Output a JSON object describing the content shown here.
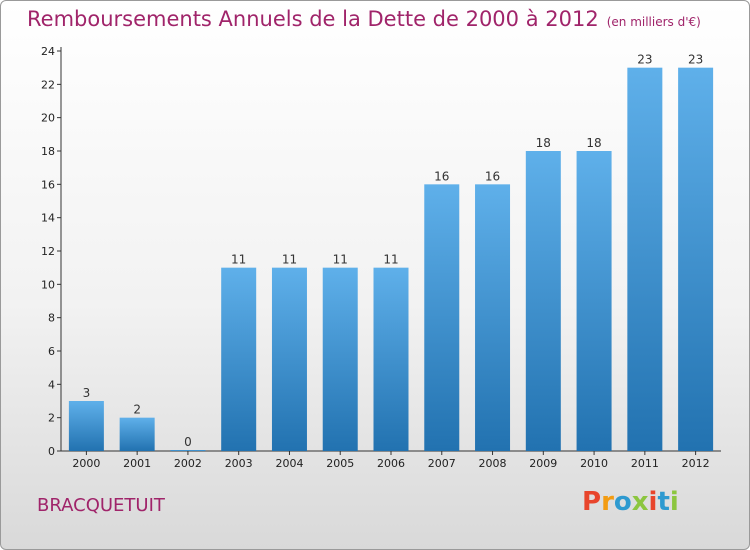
{
  "title": "Remboursements Annuels de la Dette de 2000 à 2012",
  "unit": "(en milliers d'€)",
  "commune": "BRACQUETUIT",
  "logo": {
    "text": "Proxiti",
    "colors": [
      "#e8452c",
      "#f39c12",
      "#2e9ad0",
      "#8cc63f",
      "#e8452c",
      "#2e9ad0",
      "#8cc63f"
    ]
  },
  "colors": {
    "accent": "#a0246a",
    "bar_top": "#5fb0ea",
    "bar_bottom": "#2272b0"
  },
  "chart_data": {
    "type": "bar",
    "categories": [
      "2000",
      "2001",
      "2002",
      "2003",
      "2004",
      "2005",
      "2006",
      "2007",
      "2008",
      "2009",
      "2010",
      "2011",
      "2012"
    ],
    "values": [
      3,
      2,
      0,
      11,
      11,
      11,
      11,
      16,
      16,
      18,
      18,
      23,
      23
    ],
    "value_labels": [
      "3",
      "2",
      "0",
      "11",
      "11",
      "11",
      "11",
      "16",
      "16",
      "18",
      "18",
      "23",
      "23"
    ],
    "yticks": [
      "0",
      "2",
      "4",
      "6",
      "8",
      "10",
      "12",
      "14",
      "16",
      "18",
      "20",
      "22",
      "24"
    ],
    "ylim": [
      0,
      24
    ],
    "grid": false
  }
}
